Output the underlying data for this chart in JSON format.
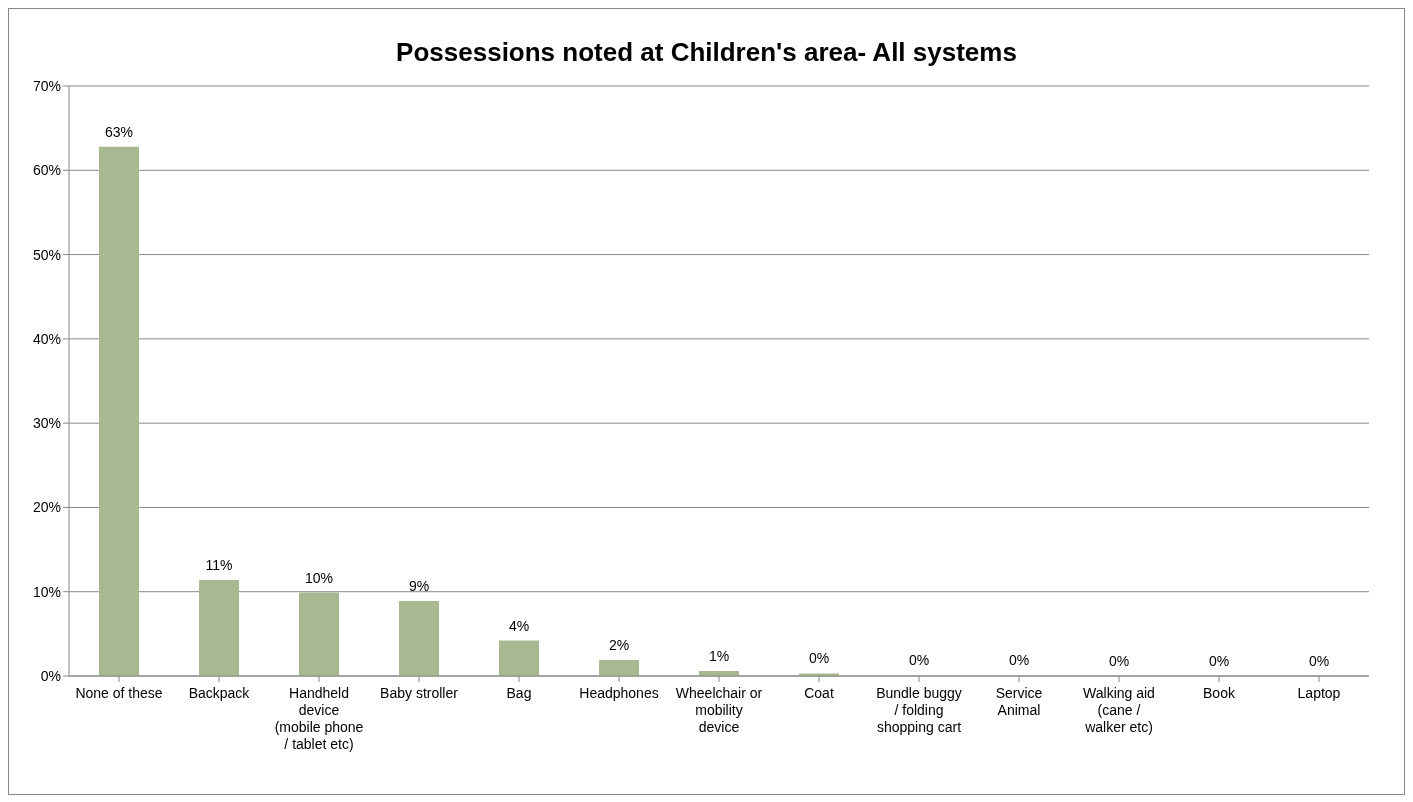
{
  "chart_data": {
    "type": "bar",
    "title": "Possessions noted at Children's area- All systems",
    "categories": [
      "None of these",
      "Backpack",
      "Handheld device (mobile phone / tablet etc)",
      "Baby stroller",
      "Bag",
      "Headphones",
      "Wheelchair or mobility device",
      "Coat",
      "Bundle buggy / folding shopping cart",
      "Service Animal",
      "Walking aid (cane / walker etc)",
      "Book",
      "Laptop"
    ],
    "values": [
      62.8,
      11.4,
      9.9,
      8.9,
      4.2,
      1.9,
      0.6,
      0.3,
      0.1,
      0.1,
      0,
      0,
      0
    ],
    "value_labels": [
      "63%",
      "11%",
      "10%",
      "9%",
      "4%",
      "2%",
      "1%",
      "0%",
      "0%",
      "0%",
      "0%",
      "0%",
      "0%"
    ],
    "color": "#a8b890",
    "ylim": [
      0,
      70
    ],
    "yticks": [
      {
        "value": 0,
        "label": "0%"
      },
      {
        "value": 10,
        "label": "10%"
      },
      {
        "value": 20,
        "label": "20%"
      },
      {
        "value": 30,
        "label": "30%"
      },
      {
        "value": 40,
        "label": "40%"
      },
      {
        "value": 50,
        "label": "50%"
      },
      {
        "value": 60,
        "label": "60%"
      },
      {
        "value": 70,
        "label": "70%"
      }
    ],
    "grid": "y",
    "legend": false
  }
}
